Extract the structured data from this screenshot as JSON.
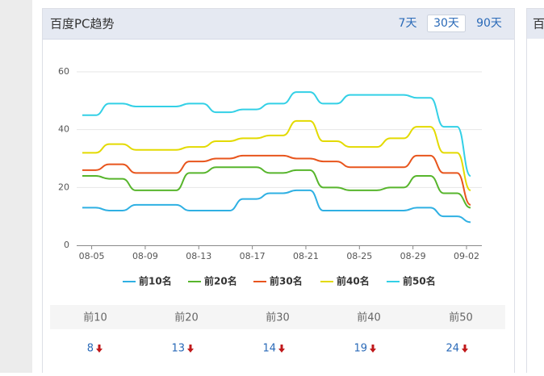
{
  "panel": {
    "title": "百度PC趋势",
    "tabs": [
      "7天",
      "30天",
      "90天"
    ],
    "active_tab": 1
  },
  "side_panel": {
    "title": "百"
  },
  "chart_data": {
    "type": "line",
    "categories": [
      null,
      "08-05",
      null,
      null,
      null,
      "08-09",
      null,
      null,
      null,
      "08-13",
      null,
      null,
      null,
      "08-17",
      null,
      null,
      null,
      "08-21",
      null,
      null,
      null,
      "08-25",
      null,
      null,
      null,
      "08-29",
      null,
      null,
      null,
      "09-02"
    ],
    "series": [
      {
        "name": "前10名",
        "color": "#2fb0e3",
        "values": [
          13,
          13,
          12,
          12,
          14,
          14,
          14,
          14,
          12,
          12,
          12,
          12,
          16,
          16,
          18,
          18,
          19,
          19,
          12,
          12,
          12,
          12,
          12,
          12,
          12,
          13,
          13,
          10,
          10,
          8
        ]
      },
      {
        "name": "前20名",
        "color": "#57b52c",
        "values": [
          24,
          24,
          23,
          23,
          19,
          19,
          19,
          19,
          25,
          25,
          27,
          27,
          27,
          27,
          25,
          25,
          26,
          26,
          20,
          20,
          19,
          19,
          19,
          20,
          20,
          24,
          24,
          18,
          18,
          13
        ]
      },
      {
        "name": "前30名",
        "color": "#e8551d",
        "values": [
          26,
          26,
          28,
          28,
          25,
          25,
          25,
          25,
          29,
          29,
          30,
          30,
          31,
          31,
          31,
          31,
          30,
          30,
          29,
          29,
          27,
          27,
          27,
          27,
          27,
          31,
          31,
          25,
          25,
          14
        ]
      },
      {
        "name": "前40名",
        "color": "#e3da00",
        "values": [
          32,
          32,
          35,
          35,
          33,
          33,
          33,
          33,
          34,
          34,
          36,
          36,
          37,
          37,
          38,
          38,
          43,
          43,
          36,
          36,
          34,
          34,
          34,
          37,
          37,
          41,
          41,
          32,
          32,
          19
        ]
      },
      {
        "name": "前50名",
        "color": "#33d0e6",
        "values": [
          45,
          45,
          49,
          49,
          48,
          48,
          48,
          48,
          49,
          49,
          46,
          46,
          47,
          47,
          49,
          49,
          53,
          53,
          49,
          49,
          52,
          52,
          52,
          52,
          52,
          51,
          51,
          41,
          41,
          24
        ]
      }
    ],
    "ylim": [
      0,
      60
    ],
    "yticks": [
      0,
      20,
      40,
      60
    ],
    "grid": true,
    "legend": "bottom"
  },
  "table": {
    "headers": [
      "前10",
      "前20",
      "前30",
      "前40",
      "前50"
    ],
    "values": [
      8,
      13,
      14,
      19,
      24
    ]
  }
}
